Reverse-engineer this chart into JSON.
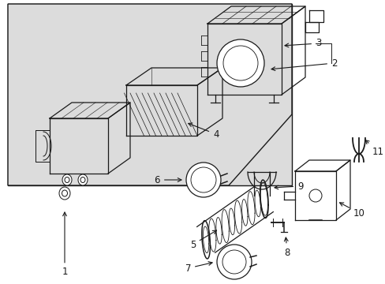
{
  "background_color": "#ffffff",
  "diagram_bg_color": "#dcdcdc",
  "line_color": "#1a1a1a",
  "label_color": "#000000",
  "fontsize": 8.5,
  "fig_width": 4.89,
  "fig_height": 3.6,
  "dpi": 100
}
